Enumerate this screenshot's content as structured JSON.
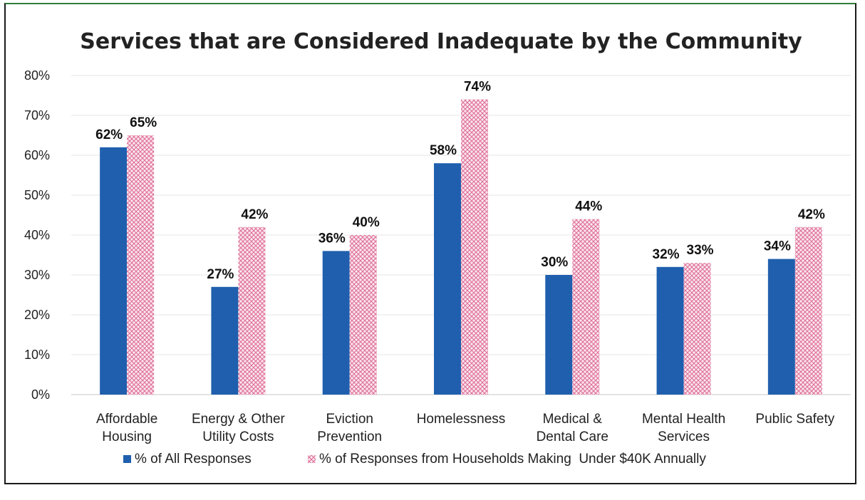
{
  "chart_data": {
    "type": "bar",
    "title": "Services that are Considered Inadequate by the Community",
    "categories": [
      [
        "Affordable",
        "Housing"
      ],
      [
        "Energy & Other",
        "Utility Costs"
      ],
      [
        "Eviction",
        "Prevention"
      ],
      [
        "Homelessness"
      ],
      [
        "Medical &",
        "Dental Care"
      ],
      [
        "Mental Health",
        "Services"
      ],
      [
        "Public Safety"
      ]
    ],
    "series": [
      {
        "name": "% of All Responses",
        "color": "#1f5fae",
        "pattern": "solid",
        "values": [
          62,
          27,
          36,
          58,
          30,
          32,
          34
        ],
        "labels": [
          "62%",
          "27%",
          "36%",
          "58%",
          "30%",
          "32%",
          "34%"
        ]
      },
      {
        "name": "% of Responses from Households Making  Under $40K Annually",
        "color": "#e07aa0",
        "pattern": "crosshatch",
        "values": [
          65,
          42,
          40,
          74,
          44,
          33,
          42
        ],
        "labels": [
          "65%",
          "42%",
          "40%",
          "74%",
          "44%",
          "33%",
          "42%"
        ]
      }
    ],
    "yticks": [
      "0%",
      "10%",
      "20%",
      "30%",
      "40%",
      "50%",
      "60%",
      "70%",
      "80%"
    ],
    "ylim": [
      0,
      80
    ],
    "grid": true,
    "legend": "bottom"
  }
}
